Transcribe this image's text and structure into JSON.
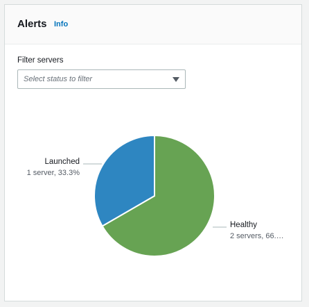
{
  "header": {
    "title": "Alerts",
    "info_label": "Info"
  },
  "filter": {
    "label": "Filter servers",
    "placeholder": "Select status to filter"
  },
  "chart_data": {
    "type": "pie",
    "slices": [
      {
        "name": "Healthy",
        "value": 2,
        "detail": "2 servers, 66.…",
        "color": "#67a353"
      },
      {
        "name": "Launched",
        "value": 1,
        "detail": "1 server, 33.3%",
        "color": "#2e86c1"
      }
    ]
  }
}
